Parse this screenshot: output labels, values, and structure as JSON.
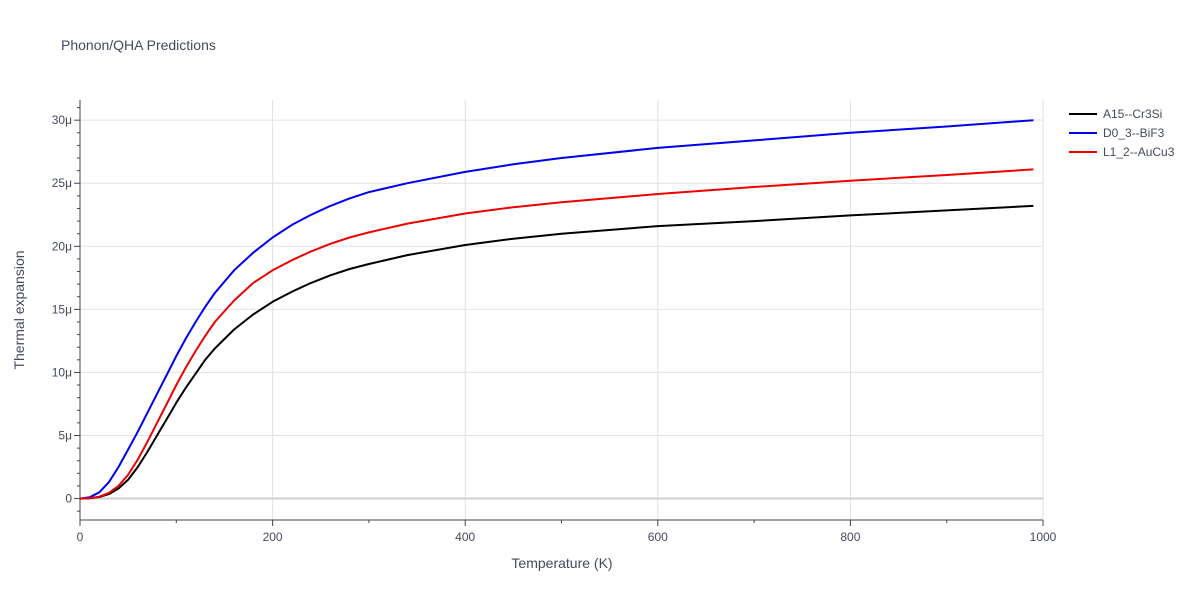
{
  "chart_data": {
    "type": "line",
    "title": "Phonon/QHA Predictions",
    "xlabel": "Temperature (K)",
    "ylabel": "Thermal expansion",
    "xlim": [
      0,
      1000
    ],
    "ylim": [
      -1.7e-06,
      3.16e-05
    ],
    "x_major_ticks": [
      0,
      200,
      400,
      600,
      800,
      1000
    ],
    "x_minor_ticks": [
      100,
      300,
      500,
      700,
      900
    ],
    "y_major_ticks": [
      0,
      5e-06,
      1e-05,
      1.5e-05,
      2e-05,
      2.5e-05,
      3e-05
    ],
    "y_minor_ticks": [
      1e-06,
      2e-06,
      3e-06,
      4e-06,
      6e-06,
      7e-06,
      8e-06,
      9e-06,
      1.1e-05,
      1.2e-05,
      1.3e-05,
      1.4e-05,
      1.6e-05,
      1.7e-05,
      1.8e-05,
      1.9e-05,
      2.1e-05,
      2.2e-05,
      2.3e-05,
      2.4e-05,
      2.6e-05,
      2.7e-05,
      2.8e-05,
      2.9e-05,
      3.1e-05,
      -1e-06
    ],
    "x_tick_labels": [
      "0",
      "200",
      "400",
      "600",
      "800",
      "1000"
    ],
    "y_tick_labels": [
      "0",
      "5μ",
      "10μ",
      "15μ",
      "20μ",
      "25μ",
      "30μ"
    ],
    "grid": true,
    "legend_position": "top-right",
    "series": [
      {
        "name": "A15--Cr3Si",
        "color": "#000000",
        "x": [
          0,
          10,
          20,
          30,
          40,
          50,
          60,
          70,
          80,
          90,
          100,
          110,
          120,
          130,
          140,
          160,
          180,
          200,
          220,
          240,
          260,
          280,
          300,
          340,
          400,
          450,
          500,
          600,
          700,
          800,
          900,
          990
        ],
        "y": [
          0,
          2e-08,
          1.2e-07,
          3.5e-07,
          8e-07,
          1.5e-06,
          2.5e-06,
          3.7e-06,
          5e-06,
          6.3e-06,
          7.6e-06,
          8.8e-06,
          9.9e-06,
          1.1e-05,
          1.19e-05,
          1.34e-05,
          1.46e-05,
          1.56e-05,
          1.64e-05,
          1.71e-05,
          1.77e-05,
          1.82e-05,
          1.86e-05,
          1.93e-05,
          2.01e-05,
          2.06e-05,
          2.1e-05,
          2.16e-05,
          2.2e-05,
          2.245e-05,
          2.285e-05,
          2.32e-05
        ]
      },
      {
        "name": "D0_3--BiF3",
        "color": "#0000ee",
        "x": [
          0,
          10,
          20,
          30,
          40,
          50,
          60,
          70,
          80,
          90,
          100,
          110,
          120,
          130,
          140,
          160,
          180,
          200,
          220,
          240,
          260,
          280,
          300,
          340,
          400,
          450,
          500,
          600,
          700,
          800,
          900,
          990
        ],
        "y": [
          0,
          1e-07,
          5e-07,
          1.3e-06,
          2.5e-06,
          3.9e-06,
          5.3e-06,
          6.8e-06,
          8.3e-06,
          9.8e-06,
          1.13e-05,
          1.27e-05,
          1.4e-05,
          1.52e-05,
          1.63e-05,
          1.81e-05,
          1.95e-05,
          2.07e-05,
          2.17e-05,
          2.25e-05,
          2.32e-05,
          2.38e-05,
          2.43e-05,
          2.5e-05,
          2.59e-05,
          2.65e-05,
          2.7e-05,
          2.78e-05,
          2.84e-05,
          2.9e-05,
          2.95e-05,
          3e-05
        ]
      },
      {
        "name": "L1_2--AuCu3",
        "color": "#ee0000",
        "x": [
          0,
          10,
          20,
          30,
          40,
          50,
          60,
          70,
          80,
          90,
          100,
          110,
          120,
          130,
          140,
          160,
          180,
          200,
          220,
          240,
          260,
          280,
          300,
          340,
          400,
          450,
          500,
          600,
          700,
          800,
          900,
          990
        ],
        "y": [
          0,
          3e-08,
          1.5e-07,
          4.5e-07,
          1e-06,
          1.9e-06,
          3.1e-06,
          4.5e-06,
          6e-06,
          7.5e-06,
          9e-06,
          1.04e-05,
          1.17e-05,
          1.29e-05,
          1.4e-05,
          1.57e-05,
          1.71e-05,
          1.81e-05,
          1.89e-05,
          1.96e-05,
          2.02e-05,
          2.07e-05,
          2.11e-05,
          2.18e-05,
          2.26e-05,
          2.31e-05,
          2.35e-05,
          2.415e-05,
          2.47e-05,
          2.52e-05,
          2.565e-05,
          2.61e-05
        ]
      }
    ]
  }
}
